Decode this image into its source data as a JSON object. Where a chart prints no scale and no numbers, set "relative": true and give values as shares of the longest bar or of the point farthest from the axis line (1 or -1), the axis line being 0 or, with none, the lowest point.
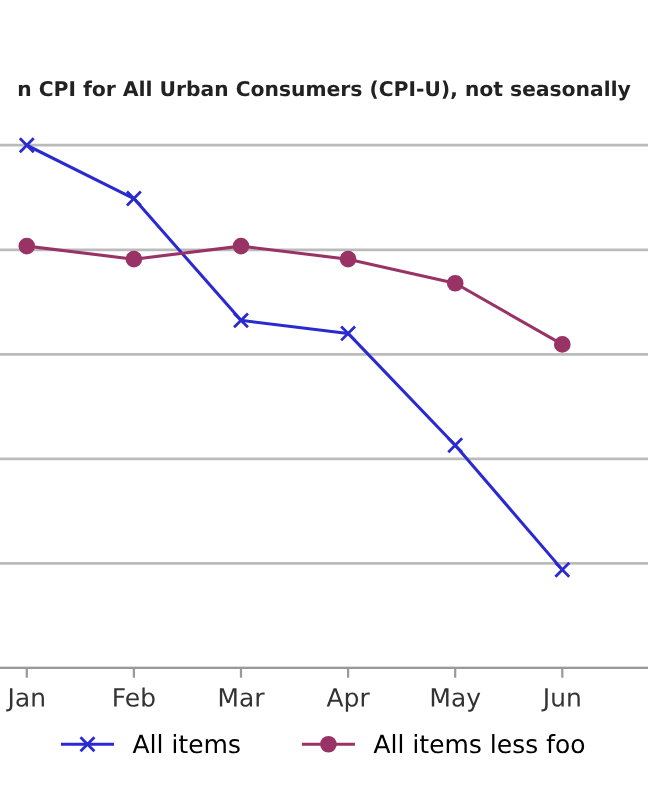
{
  "chart_data": {
    "type": "line",
    "title": "n CPI for All Urban Consumers (CPI-U), not seasonally",
    "relative": true,
    "categories": [
      "Jan",
      "Feb",
      "Mar",
      "Apr",
      "May",
      "Jun"
    ],
    "series": [
      {
        "name": "All items",
        "color": "#2a2ad0",
        "marker": "cross",
        "values": [
          1,
          0.898,
          0.665,
          0.64,
          0.426,
          0.188
        ]
      },
      {
        "name": "All items less foo",
        "color": "#993366",
        "marker": "circle",
        "values": [
          0.807,
          0.782,
          0.807,
          0.782,
          0.736,
          0.619
        ]
      }
    ],
    "grid": "y",
    "legend": "bottom"
  }
}
